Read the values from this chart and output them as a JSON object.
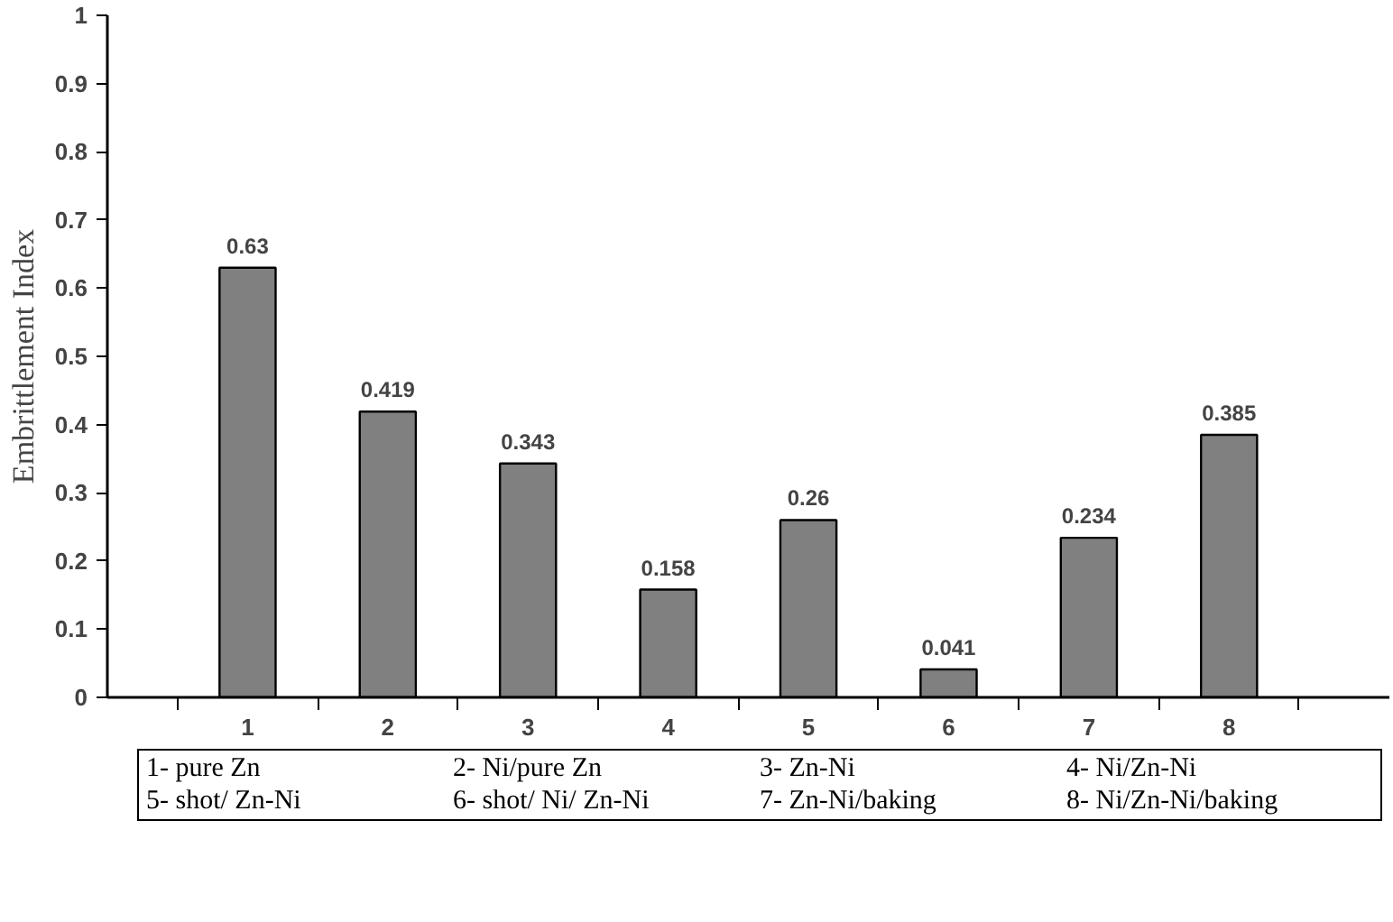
{
  "chart_data": {
    "type": "bar",
    "ylabel": "Embrittlement Index",
    "categories": [
      "1",
      "2",
      "3",
      "4",
      "5",
      "6",
      "7",
      "8"
    ],
    "values": [
      0.63,
      0.419,
      0.343,
      0.158,
      0.26,
      0.041,
      0.234,
      0.385
    ],
    "color": "#808080",
    "data_labels": true,
    "grid": false,
    "ylim": [
      0,
      1
    ],
    "yticks": [
      0,
      0.1,
      0.2,
      0.3,
      0.4,
      0.5,
      0.6,
      0.7,
      0.8,
      0.9,
      1
    ],
    "annotations": [
      "1- pure Zn",
      "2- Ni/pure Zn",
      "3- Zn-Ni",
      "4- Ni/Zn-Ni",
      "5- shot/ Zn-Ni",
      "6- shot/ Ni/ Zn-Ni",
      "7- Zn-Ni/baking",
      "8- Ni/Zn-Ni/baking"
    ]
  }
}
